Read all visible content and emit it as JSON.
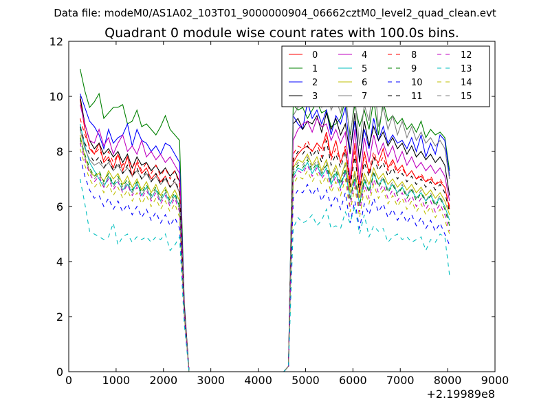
{
  "chart_data": {
    "type": "line",
    "suptitle": "Data file: modeM0/AS1A02_103T01_9000000904_06662cztM0_level2_quad_clean.evt",
    "title": "Quadrant 0 module wise count rates with 100.0s bins.",
    "xlabel": "",
    "ylabel": "",
    "x_offset_label": "+2.19989e8",
    "xlim": [
      0,
      9000
    ],
    "ylim": [
      0,
      12
    ],
    "xticks": [
      0,
      1000,
      2000,
      3000,
      4000,
      5000,
      6000,
      7000,
      8000,
      9000
    ],
    "yticks": [
      0,
      2,
      4,
      6,
      8,
      10,
      12
    ],
    "grid": false,
    "legend_position": "top-right",
    "gap_x": [
      2540,
      2640,
      2740,
      2840,
      2940,
      3040,
      3140,
      3240,
      3340,
      3440,
      3540,
      3640,
      3740,
      3840,
      3940,
      4040,
      4140,
      4240,
      4340,
      4440,
      4540,
      4640
    ],
    "seg1_x": [
      240,
      340,
      440,
      540,
      640,
      740,
      840,
      940,
      1040,
      1140,
      1240,
      1340,
      1440,
      1540,
      1640,
      1740,
      1840,
      1940,
      2040,
      2140,
      2240,
      2340,
      2440
    ],
    "seg2_x": [
      4640,
      4740,
      4840,
      4940,
      5040,
      5140,
      5240,
      5340,
      5440,
      5540,
      5640,
      5740,
      5840,
      5940,
      6040,
      6140,
      6240,
      6340,
      6440,
      6540,
      6640,
      6740,
      6840,
      6940,
      7040,
      7140,
      7240,
      7340,
      7440,
      7540,
      7640,
      7740,
      7840,
      7940,
      8040
    ],
    "series": [
      {
        "name": "0",
        "color": "#ff0000",
        "dash": false,
        "seg1": [
          9.9,
          8.8,
          8.1,
          7.9,
          8.3,
          7.6,
          7.8,
          7.4,
          7.9,
          7.3,
          7.8,
          7.1,
          7.6,
          7.2,
          7.4,
          7.0,
          7.2,
          6.9,
          7.1,
          6.7,
          6.9,
          6.5,
          2.2
        ],
        "seg2": [
          0.2,
          7.6,
          7.9,
          8.1,
          8.2,
          8.0,
          8.3,
          8.1,
          8.7,
          7.8,
          8.4,
          7.6,
          8.1,
          6.7,
          8.3,
          6.5,
          8.0,
          7.2,
          7.8,
          7.6,
          8.1,
          7.4,
          7.7,
          7.3,
          7.5,
          7.1,
          7.3,
          7.0,
          7.1,
          6.9,
          7.0,
          6.8,
          6.9,
          6.7,
          5.9
        ]
      },
      {
        "name": "1",
        "color": "#008000",
        "dash": false,
        "seg1": [
          11.0,
          10.2,
          9.6,
          9.8,
          10.1,
          9.2,
          9.4,
          9.6,
          9.6,
          9.7,
          9.0,
          9.1,
          9.5,
          8.9,
          9.0,
          8.8,
          8.6,
          8.9,
          9.3,
          8.8,
          8.6,
          8.4,
          2.5
        ],
        "seg2": [
          0.2,
          9.7,
          9.5,
          9.6,
          9.2,
          9.5,
          9.8,
          9.4,
          9.5,
          8.9,
          9.0,
          9.2,
          9.9,
          8.6,
          9.7,
          8.9,
          9.5,
          8.8,
          9.9,
          8.6,
          9.8,
          9.1,
          9.3,
          9.0,
          9.2,
          8.8,
          9.0,
          8.7,
          9.1,
          8.5,
          8.8,
          8.6,
          8.7,
          8.5,
          7.3
        ]
      },
      {
        "name": "2",
        "color": "#0000ff",
        "dash": false,
        "seg1": [
          10.1,
          9.6,
          9.1,
          8.9,
          8.6,
          8.1,
          8.8,
          8.3,
          8.5,
          8.6,
          9.0,
          8.2,
          8.8,
          8.4,
          8.3,
          8.0,
          8.2,
          7.9,
          8.3,
          8.2,
          7.9,
          7.6,
          2.4
        ],
        "seg2": [
          0.2,
          9.3,
          9.0,
          8.8,
          9.8,
          9.2,
          9.5,
          9.0,
          9.5,
          8.6,
          9.3,
          9.0,
          9.6,
          8.0,
          9.1,
          7.7,
          8.8,
          8.1,
          9.2,
          8.4,
          8.9,
          8.3,
          8.6,
          8.3,
          8.4,
          8.1,
          8.5,
          8.0,
          8.6,
          7.8,
          8.3,
          7.9,
          8.6,
          8.4,
          7.1
        ]
      },
      {
        "name": "3",
        "color": "#000000",
        "dash": false,
        "seg1": [
          10.0,
          9.0,
          8.4,
          8.1,
          8.3,
          7.9,
          8.1,
          7.8,
          8.0,
          7.6,
          7.9,
          7.4,
          7.8,
          7.5,
          7.6,
          7.3,
          7.5,
          7.2,
          7.4,
          7.1,
          7.3,
          6.9,
          2.3
        ],
        "seg2": [
          0.2,
          9.0,
          9.2,
          8.8,
          9.1,
          9.0,
          9.3,
          8.7,
          9.4,
          8.8,
          9.2,
          8.6,
          9.0,
          7.9,
          9.4,
          7.6,
          9.1,
          8.2,
          8.9,
          8.4,
          8.7,
          8.2,
          8.5,
          8.1,
          8.3,
          7.9,
          8.2,
          7.8,
          8.0,
          7.7,
          7.9,
          7.6,
          7.8,
          7.5,
          6.4
        ]
      },
      {
        "name": "4",
        "color": "#bf00bf",
        "dash": false,
        "seg1": [
          9.7,
          9.0,
          8.4,
          8.3,
          8.8,
          8.2,
          8.5,
          7.9,
          8.3,
          8.6,
          8.0,
          8.2,
          7.9,
          8.4,
          7.8,
          8.0,
          7.7,
          7.9,
          7.6,
          7.8,
          7.5,
          7.2,
          2.3
        ],
        "seg2": [
          0.2,
          8.4,
          8.8,
          9.0,
          9.1,
          8.7,
          9.2,
          8.9,
          9.0,
          8.4,
          8.8,
          8.3,
          8.7,
          7.0,
          8.8,
          6.9,
          8.5,
          7.6,
          8.6,
          7.9,
          8.3,
          7.8,
          8.2,
          7.6,
          8.0,
          7.5,
          7.8,
          7.4,
          7.6,
          7.3,
          7.5,
          7.2,
          7.4,
          7.1,
          6.2
        ]
      },
      {
        "name": "5",
        "color": "#00bfbf",
        "dash": false,
        "seg1": [
          9.0,
          8.2,
          7.6,
          7.3,
          7.0,
          6.7,
          7.1,
          6.8,
          6.9,
          6.6,
          6.8,
          6.5,
          6.9,
          6.4,
          6.7,
          6.3,
          6.6,
          6.2,
          6.5,
          6.1,
          6.4,
          6.0,
          2.1
        ],
        "seg2": [
          0.2,
          7.1,
          7.4,
          7.3,
          7.6,
          7.2,
          7.5,
          7.1,
          7.4,
          6.8,
          7.2,
          6.7,
          7.3,
          6.3,
          7.0,
          6.1,
          6.9,
          6.6,
          7.2,
          6.8,
          7.0,
          6.6,
          6.8,
          6.5,
          6.7,
          6.4,
          6.6,
          6.3,
          6.5,
          6.2,
          6.4,
          6.1,
          6.3,
          6.0,
          5.5
        ]
      },
      {
        "name": "6",
        "color": "#bfbf00",
        "dash": false,
        "seg1": [
          8.6,
          7.8,
          7.3,
          7.1,
          7.2,
          6.9,
          7.3,
          7.0,
          7.2,
          6.8,
          7.1,
          6.7,
          7.0,
          6.6,
          6.9,
          6.5,
          6.8,
          6.4,
          6.7,
          6.3,
          6.6,
          6.2,
          2.1
        ],
        "seg2": [
          0.2,
          7.4,
          7.7,
          7.6,
          7.9,
          7.5,
          7.8,
          7.3,
          7.7,
          7.1,
          7.5,
          7.0,
          7.6,
          6.5,
          7.3,
          6.3,
          7.2,
          6.8,
          7.4,
          7.0,
          7.2,
          6.8,
          7.0,
          6.7,
          6.9,
          6.6,
          6.8,
          6.5,
          6.7,
          6.4,
          6.6,
          6.3,
          6.5,
          6.2,
          5.7
        ]
      },
      {
        "name": "7",
        "color": "#808080",
        "dash": false,
        "seg1": [
          8.8,
          8.1,
          7.7,
          7.5,
          7.6,
          7.4,
          7.6,
          7.3,
          7.5,
          7.2,
          7.4,
          7.1,
          7.3,
          7.0,
          7.2,
          6.9,
          7.1,
          6.8,
          7.0,
          6.7,
          6.9,
          6.5,
          2.2
        ],
        "seg2": [
          0.2,
          9.3,
          9.6,
          9.8,
          10.2,
          9.7,
          10.0,
          9.6,
          10.6,
          9.5,
          9.9,
          9.4,
          10.2,
          8.4,
          10.0,
          8.2,
          9.7,
          9.1,
          10.8,
          8.9,
          9.6,
          8.8,
          9.3,
          8.6,
          9.1,
          8.5,
          8.9,
          8.4,
          8.7,
          8.3,
          8.5,
          8.2,
          8.4,
          8.1,
          7.0
        ]
      },
      {
        "name": "8",
        "color": "#ff0000",
        "dash": true,
        "seg1": [
          9.2,
          8.6,
          8.2,
          7.9,
          8.1,
          7.7,
          8.0,
          7.6,
          7.9,
          7.5,
          7.8,
          7.4,
          7.7,
          7.3,
          7.6,
          7.2,
          7.5,
          7.1,
          7.4,
          7.0,
          7.3,
          6.8,
          2.3
        ],
        "seg2": [
          0.2,
          7.9,
          8.2,
          8.1,
          8.4,
          8.0,
          8.3,
          7.8,
          8.6,
          7.7,
          8.1,
          7.6,
          8.2,
          6.9,
          8.0,
          6.7,
          7.8,
          7.3,
          8.0,
          7.5,
          7.8,
          7.3,
          7.6,
          7.2,
          7.4,
          7.1,
          7.3,
          7.0,
          7.2,
          6.9,
          7.1,
          6.8,
          7.0,
          6.7,
          6.0
        ]
      },
      {
        "name": "9",
        "color": "#008000",
        "dash": true,
        "seg1": [
          8.5,
          7.9,
          7.4,
          7.1,
          7.3,
          6.9,
          7.2,
          6.8,
          7.1,
          6.7,
          7.0,
          6.6,
          6.9,
          6.5,
          6.8,
          6.4,
          6.7,
          6.3,
          6.6,
          6.2,
          6.5,
          6.0,
          2.1
        ],
        "seg2": [
          0.2,
          7.2,
          7.5,
          7.4,
          7.7,
          7.3,
          7.6,
          7.2,
          7.5,
          6.9,
          7.3,
          6.8,
          7.4,
          6.2,
          7.1,
          6.0,
          7.0,
          6.5,
          7.2,
          6.7,
          7.0,
          6.5,
          6.8,
          6.4,
          6.7,
          6.3,
          6.6,
          6.2,
          6.5,
          6.1,
          6.4,
          6.0,
          6.3,
          5.9,
          5.3
        ]
      },
      {
        "name": "10",
        "color": "#0000ff",
        "dash": true,
        "seg1": [
          7.8,
          7.1,
          6.6,
          6.3,
          6.4,
          6.0,
          6.3,
          5.9,
          6.2,
          5.8,
          6.1,
          5.7,
          6.0,
          5.6,
          5.9,
          5.5,
          5.8,
          5.4,
          5.7,
          5.3,
          5.6,
          5.2,
          1.9
        ],
        "seg2": [
          0.2,
          6.3,
          6.6,
          6.5,
          6.8,
          6.4,
          6.7,
          6.2,
          6.6,
          6.0,
          6.4,
          5.9,
          6.5,
          5.4,
          6.2,
          5.2,
          6.1,
          5.7,
          6.3,
          5.8,
          6.1,
          5.6,
          5.9,
          5.5,
          5.8,
          5.4,
          5.7,
          5.3,
          5.6,
          5.2,
          5.5,
          5.1,
          5.4,
          5.0,
          4.6
        ]
      },
      {
        "name": "11",
        "color": "#000000",
        "dash": true,
        "seg1": [
          8.9,
          8.3,
          7.9,
          7.6,
          7.8,
          7.4,
          7.7,
          7.3,
          7.6,
          7.2,
          7.5,
          7.1,
          7.4,
          7.0,
          7.3,
          6.9,
          7.2,
          6.8,
          7.1,
          6.7,
          7.0,
          6.5,
          2.2
        ],
        "seg2": [
          0.2,
          7.7,
          8.0,
          7.9,
          8.2,
          7.8,
          8.1,
          7.6,
          8.4,
          7.5,
          7.9,
          7.4,
          8.0,
          6.7,
          7.8,
          6.5,
          7.6,
          7.1,
          7.8,
          7.3,
          7.6,
          7.1,
          7.4,
          7.0,
          7.2,
          6.9,
          7.1,
          6.8,
          7.0,
          6.7,
          6.9,
          6.6,
          6.8,
          6.5,
          5.8
        ]
      },
      {
        "name": "12",
        "color": "#bf00bf",
        "dash": true,
        "seg1": [
          8.3,
          7.7,
          7.2,
          6.9,
          7.1,
          6.7,
          7.0,
          6.6,
          6.9,
          6.5,
          6.8,
          6.4,
          6.7,
          6.3,
          6.6,
          6.2,
          6.5,
          6.1,
          6.4,
          6.0,
          6.3,
          5.8,
          2.0
        ],
        "seg2": [
          0.2,
          7.0,
          7.3,
          7.2,
          7.5,
          7.1,
          7.4,
          7.0,
          7.3,
          6.7,
          7.1,
          6.6,
          7.2,
          6.0,
          6.9,
          5.8,
          6.8,
          6.3,
          7.0,
          6.5,
          6.8,
          6.3,
          6.6,
          6.2,
          6.5,
          6.1,
          6.4,
          6.0,
          6.3,
          5.9,
          6.2,
          5.8,
          6.1,
          5.7,
          5.1
        ]
      },
      {
        "name": "13",
        "color": "#00bfbf",
        "dash": true,
        "seg1": [
          7.0,
          6.1,
          5.1,
          5.0,
          4.9,
          4.8,
          4.9,
          5.4,
          4.6,
          4.9,
          5.0,
          4.7,
          4.9,
          4.8,
          4.9,
          4.7,
          4.9,
          4.8,
          5.0,
          4.4,
          4.6,
          4.9,
          1.7
        ],
        "seg2": [
          0.2,
          5.2,
          5.6,
          5.4,
          5.5,
          5.7,
          5.3,
          5.5,
          5.9,
          5.2,
          5.3,
          5.2,
          5.8,
          5.4,
          6.0,
          5.0,
          5.7,
          4.9,
          5.3,
          5.1,
          5.2,
          4.7,
          4.9,
          5.0,
          4.8,
          4.9,
          4.7,
          4.8,
          4.9,
          4.4,
          4.8,
          4.7,
          5.0,
          4.9,
          3.5
        ]
      },
      {
        "name": "14",
        "color": "#bfbf00",
        "dash": true,
        "seg1": [
          8.1,
          7.5,
          7.0,
          6.7,
          6.9,
          6.5,
          6.8,
          6.4,
          6.7,
          6.3,
          6.6,
          6.2,
          6.5,
          6.1,
          6.4,
          6.0,
          6.3,
          5.9,
          6.2,
          5.8,
          6.1,
          5.6,
          2.0
        ],
        "seg2": [
          0.2,
          6.8,
          7.1,
          7.0,
          7.3,
          6.9,
          7.2,
          6.8,
          7.1,
          6.5,
          6.9,
          6.4,
          7.0,
          5.8,
          6.7,
          5.6,
          6.6,
          6.1,
          6.8,
          6.3,
          6.6,
          6.1,
          6.4,
          6.0,
          6.3,
          5.9,
          6.2,
          5.8,
          6.1,
          5.7,
          6.0,
          5.6,
          5.9,
          5.5,
          5.0
        ]
      },
      {
        "name": "15",
        "color": "#808080",
        "dash": true,
        "seg1": [
          8.4,
          7.8,
          7.3,
          7.0,
          7.2,
          6.8,
          7.1,
          6.7,
          7.0,
          6.6,
          6.9,
          6.5,
          6.8,
          6.4,
          6.7,
          6.3,
          6.6,
          6.2,
          6.5,
          6.1,
          6.4,
          5.9,
          2.1
        ],
        "seg2": [
          0.2,
          7.3,
          7.6,
          7.5,
          7.8,
          7.4,
          7.7,
          7.2,
          7.6,
          7.0,
          7.4,
          6.9,
          7.5,
          6.3,
          7.2,
          6.1,
          7.1,
          6.6,
          7.3,
          6.8,
          7.1,
          6.6,
          6.9,
          6.5,
          6.8,
          6.4,
          6.7,
          6.3,
          6.6,
          6.2,
          6.5,
          6.1,
          6.4,
          6.0,
          5.4
        ]
      }
    ]
  }
}
